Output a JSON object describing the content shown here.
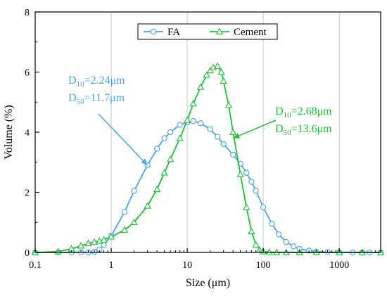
{
  "chart_data": {
    "type": "line",
    "title": "",
    "xlabel": "Size (μm)",
    "ylabel": "Volume (%)",
    "xscale": "log",
    "xlim": [
      0.1,
      3500
    ],
    "ylim": [
      0,
      8
    ],
    "x_ticks": [
      0.1,
      1,
      10,
      100,
      1000
    ],
    "x_tick_labels": [
      "0.1",
      "1",
      "10",
      "100",
      "1000"
    ],
    "y_ticks": [
      0,
      2,
      4,
      6,
      8
    ],
    "y_tick_labels": [
      "0",
      "2",
      "4",
      "6",
      "8"
    ],
    "grid": "vertical-major",
    "legend": "top-center",
    "series": [
      {
        "name": "FA",
        "color": "#4da3e6",
        "marker": "circle",
        "x": [
          0.1,
          0.2,
          0.3,
          0.4,
          0.5,
          0.6,
          0.7,
          0.8,
          1,
          1.5,
          2,
          3,
          4,
          5,
          6,
          8,
          10,
          12,
          15,
          20,
          25,
          30,
          40,
          50,
          60,
          70,
          80,
          100,
          130,
          160,
          200,
          250,
          300,
          400,
          500,
          700,
          1000,
          1500,
          2000,
          2500,
          3500
        ],
        "values": [
          0,
          0,
          0,
          0,
          0,
          0.02,
          0.1,
          0.25,
          0.55,
          1.35,
          2.05,
          2.9,
          3.45,
          3.8,
          4.0,
          4.25,
          4.33,
          4.37,
          4.3,
          4.1,
          3.85,
          3.6,
          3.25,
          2.95,
          2.65,
          2.35,
          2.05,
          1.5,
          0.95,
          0.6,
          0.35,
          0.2,
          0.12,
          0.06,
          0.03,
          0.01,
          0,
          0,
          0,
          0,
          0
        ]
      },
      {
        "name": "Cement",
        "color": "#1fbf3a",
        "marker": "triangle",
        "x": [
          0.1,
          0.2,
          0.3,
          0.4,
          0.5,
          0.6,
          0.7,
          0.8,
          1,
          1.5,
          2,
          3,
          4,
          5,
          6,
          8,
          10,
          12,
          15,
          18,
          20,
          22,
          25,
          28,
          30,
          35,
          40,
          50,
          60,
          70,
          80,
          90,
          100,
          120,
          150,
          200,
          300,
          500,
          1000,
          2000,
          3500
        ],
        "values": [
          0,
          0.03,
          0.12,
          0.22,
          0.3,
          0.35,
          0.38,
          0.42,
          0.52,
          0.75,
          1.0,
          1.55,
          2.1,
          2.65,
          3.1,
          3.8,
          4.4,
          4.95,
          5.5,
          5.9,
          6.05,
          6.15,
          6.2,
          6.0,
          5.7,
          4.9,
          4.0,
          2.6,
          1.5,
          0.7,
          0.25,
          0.08,
          0.03,
          0.01,
          0,
          0,
          0,
          0,
          0,
          0,
          0
        ]
      }
    ],
    "annotations": [
      {
        "series": "FA",
        "color": "#4da3e6",
        "lines": [
          {
            "var": "D",
            "sub": "10",
            "text": "=2.24μm"
          },
          {
            "var": "D",
            "sub": "50",
            "text": "=11.7μm"
          }
        ],
        "arrow_to": [
          3,
          2.9
        ]
      },
      {
        "series": "Cement",
        "color": "#1fbf3a",
        "lines": [
          {
            "var": "D",
            "sub": "10",
            "text": "=2.68μm"
          },
          {
            "var": "D",
            "sub": "50",
            "text": "=13.6μm"
          }
        ],
        "arrow_to": [
          40,
          3.8
        ]
      }
    ]
  }
}
